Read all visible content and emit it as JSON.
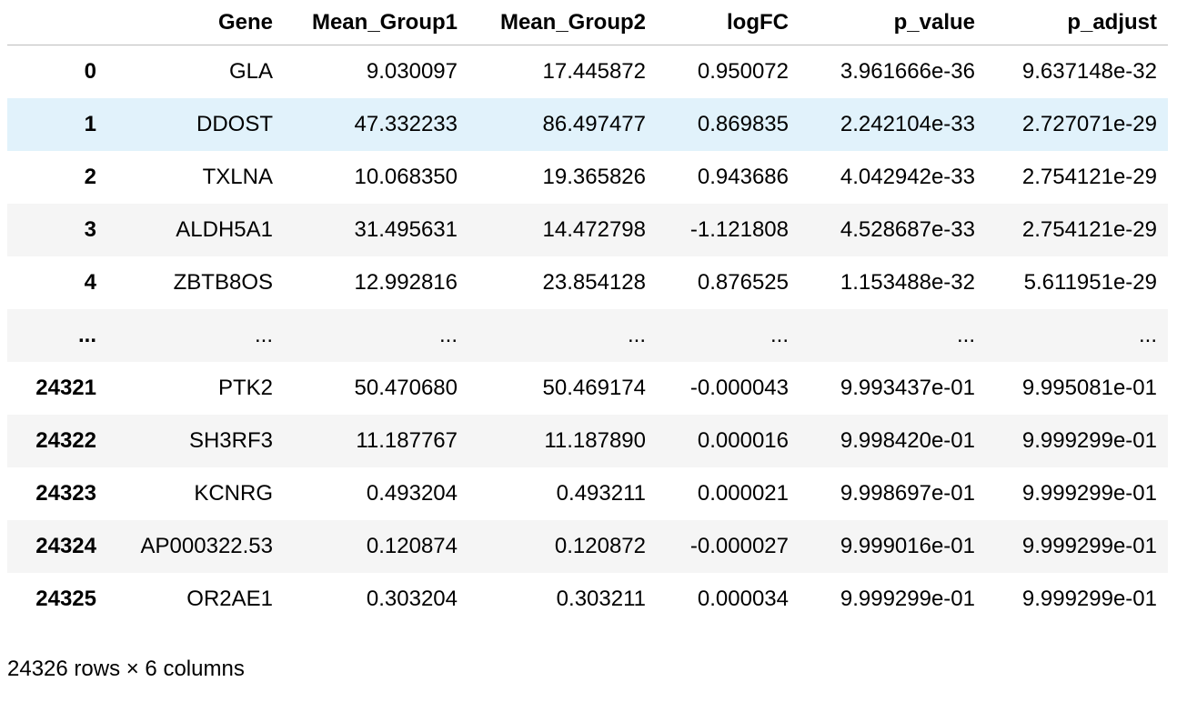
{
  "table": {
    "columns": [
      "Gene",
      "Mean_Group1",
      "Mean_Group2",
      "logFC",
      "p_value",
      "p_adjust"
    ],
    "rows": [
      {
        "index": "0",
        "cells": [
          "GLA",
          "9.030097",
          "17.445872",
          "0.950072",
          "3.961666e-36",
          "9.637148e-32"
        ]
      },
      {
        "index": "1",
        "cells": [
          "DDOST",
          "47.332233",
          "86.497477",
          "0.869835",
          "2.242104e-33",
          "2.727071e-29"
        ]
      },
      {
        "index": "2",
        "cells": [
          "TXLNA",
          "10.068350",
          "19.365826",
          "0.943686",
          "4.042942e-33",
          "2.754121e-29"
        ]
      },
      {
        "index": "3",
        "cells": [
          "ALDH5A1",
          "31.495631",
          "14.472798",
          "-1.121808",
          "4.528687e-33",
          "2.754121e-29"
        ]
      },
      {
        "index": "4",
        "cells": [
          "ZBTB8OS",
          "12.992816",
          "23.854128",
          "0.876525",
          "1.153488e-32",
          "5.611951e-29"
        ]
      },
      {
        "index": "...",
        "cells": [
          "...",
          "...",
          "...",
          "...",
          "...",
          "..."
        ]
      },
      {
        "index": "24321",
        "cells": [
          "PTK2",
          "50.470680",
          "50.469174",
          "-0.000043",
          "9.993437e-01",
          "9.995081e-01"
        ]
      },
      {
        "index": "24322",
        "cells": [
          "SH3RF3",
          "11.187767",
          "11.187890",
          "0.000016",
          "9.998420e-01",
          "9.999299e-01"
        ]
      },
      {
        "index": "24323",
        "cells": [
          "KCNRG",
          "0.493204",
          "0.493211",
          "0.000021",
          "9.998697e-01",
          "9.999299e-01"
        ]
      },
      {
        "index": "24324",
        "cells": [
          "AP000322.53",
          "0.120874",
          "0.120872",
          "-0.000027",
          "9.999016e-01",
          "9.999299e-01"
        ]
      },
      {
        "index": "24325",
        "cells": [
          "OR2AE1",
          "0.303204",
          "0.303211",
          "0.000034",
          "9.999299e-01",
          "9.999299e-01"
        ]
      }
    ],
    "footer": "24326 rows × 6 columns"
  }
}
